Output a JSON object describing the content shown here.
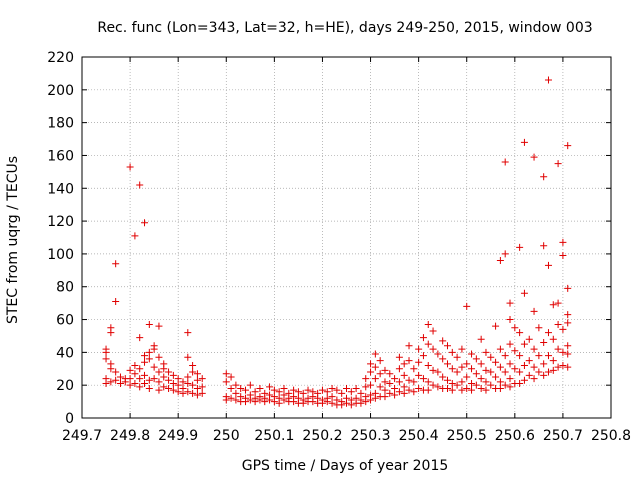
{
  "chart_data": {
    "type": "scatter",
    "title": "Rec. func (Lon=343, Lat=32, h=HE), days 249-250, 2015, window 003",
    "xlabel": "GPS time / Days of year 2015",
    "ylabel": "STEC from uqrg / TECUs",
    "xlim": [
      249.7,
      250.8
    ],
    "ylim": [
      0,
      220
    ],
    "xticks": [
      "249.7",
      "249.8",
      "249.9",
      "250",
      "250.1",
      "250.2",
      "250.3",
      "250.4",
      "250.5",
      "250.6",
      "250.7",
      "250.8"
    ],
    "yticks": [
      "0",
      "20",
      "40",
      "60",
      "80",
      "100",
      "120",
      "140",
      "160",
      "180",
      "200",
      "220"
    ],
    "grid": true,
    "marker": "+",
    "color": "#e00000",
    "points": [
      [
        249.75,
        42
      ],
      [
        249.75,
        40
      ],
      [
        249.75,
        36
      ],
      [
        249.75,
        24
      ],
      [
        249.75,
        21
      ],
      [
        249.76,
        55
      ],
      [
        249.76,
        52
      ],
      [
        249.76,
        33
      ],
      [
        249.76,
        30
      ],
      [
        249.76,
        22
      ],
      [
        249.77,
        94
      ],
      [
        249.77,
        71
      ],
      [
        249.77,
        28
      ],
      [
        249.77,
        23
      ],
      [
        249.78,
        25
      ],
      [
        249.78,
        21
      ],
      [
        249.79,
        22
      ],
      [
        249.79,
        24
      ],
      [
        249.8,
        153
      ],
      [
        249.8,
        29
      ],
      [
        249.8,
        20
      ],
      [
        249.8,
        24
      ],
      [
        249.81,
        111
      ],
      [
        249.81,
        32
      ],
      [
        249.81,
        27
      ],
      [
        249.81,
        21
      ],
      [
        249.82,
        142
      ],
      [
        249.82,
        49
      ],
      [
        249.82,
        30
      ],
      [
        249.82,
        24
      ],
      [
        249.82,
        19
      ],
      [
        249.83,
        119
      ],
      [
        249.83,
        38
      ],
      [
        249.83,
        34
      ],
      [
        249.83,
        26
      ],
      [
        249.83,
        21
      ],
      [
        249.84,
        57
      ],
      [
        249.84,
        40
      ],
      [
        249.84,
        36
      ],
      [
        249.84,
        23
      ],
      [
        249.84,
        18
      ],
      [
        249.85,
        44
      ],
      [
        249.85,
        42
      ],
      [
        249.85,
        31
      ],
      [
        249.85,
        24
      ],
      [
        249.86,
        56
      ],
      [
        249.86,
        37
      ],
      [
        249.86,
        28
      ],
      [
        249.86,
        22
      ],
      [
        249.86,
        17
      ],
      [
        249.87,
        33
      ],
      [
        249.87,
        30
      ],
      [
        249.87,
        25
      ],
      [
        249.87,
        19
      ],
      [
        249.88,
        28
      ],
      [
        249.88,
        23
      ],
      [
        249.88,
        18
      ],
      [
        249.89,
        26
      ],
      [
        249.89,
        21
      ],
      [
        249.89,
        17
      ],
      [
        249.9,
        24
      ],
      [
        249.9,
        20
      ],
      [
        249.9,
        16
      ],
      [
        249.91,
        22
      ],
      [
        249.91,
        18
      ],
      [
        249.91,
        15
      ],
      [
        249.92,
        52
      ],
      [
        249.92,
        37
      ],
      [
        249.92,
        25
      ],
      [
        249.92,
        21
      ],
      [
        249.92,
        16
      ],
      [
        249.93,
        32
      ],
      [
        249.93,
        28
      ],
      [
        249.93,
        20
      ],
      [
        249.93,
        15
      ],
      [
        249.94,
        27
      ],
      [
        249.94,
        23
      ],
      [
        249.94,
        18
      ],
      [
        249.94,
        14
      ],
      [
        249.95,
        24
      ],
      [
        249.95,
        19
      ],
      [
        249.95,
        15
      ],
      [
        250.0,
        27
      ],
      [
        250.0,
        22
      ],
      [
        250.0,
        13
      ],
      [
        250.0,
        11
      ],
      [
        250.01,
        25
      ],
      [
        250.01,
        18
      ],
      [
        250.01,
        12
      ],
      [
        250.02,
        20
      ],
      [
        250.02,
        15
      ],
      [
        250.02,
        11
      ],
      [
        250.03,
        18
      ],
      [
        250.03,
        13
      ],
      [
        250.03,
        10
      ],
      [
        250.04,
        17
      ],
      [
        250.04,
        12
      ],
      [
        250.04,
        10
      ],
      [
        250.05,
        20
      ],
      [
        250.05,
        14
      ],
      [
        250.05,
        11
      ],
      [
        250.06,
        16
      ],
      [
        250.06,
        12
      ],
      [
        250.06,
        10
      ],
      [
        250.07,
        18
      ],
      [
        250.07,
        13
      ],
      [
        250.07,
        11
      ],
      [
        250.08,
        15
      ],
      [
        250.08,
        12
      ],
      [
        250.08,
        10
      ],
      [
        250.09,
        19
      ],
      [
        250.09,
        14
      ],
      [
        250.09,
        11
      ],
      [
        250.1,
        17
      ],
      [
        250.1,
        13
      ],
      [
        250.1,
        10
      ],
      [
        250.11,
        16
      ],
      [
        250.11,
        12
      ],
      [
        250.11,
        9
      ],
      [
        250.12,
        18
      ],
      [
        250.12,
        14
      ],
      [
        250.12,
        11
      ],
      [
        250.13,
        15
      ],
      [
        250.13,
        12
      ],
      [
        250.13,
        10
      ],
      [
        250.14,
        17
      ],
      [
        250.14,
        13
      ],
      [
        250.14,
        10
      ],
      [
        250.15,
        16
      ],
      [
        250.15,
        12
      ],
      [
        250.15,
        9
      ],
      [
        250.16,
        15
      ],
      [
        250.16,
        11
      ],
      [
        250.16,
        9
      ],
      [
        250.17,
        17
      ],
      [
        250.17,
        12
      ],
      [
        250.17,
        10
      ],
      [
        250.18,
        16
      ],
      [
        250.18,
        13
      ],
      [
        250.18,
        10
      ],
      [
        250.19,
        15
      ],
      [
        250.19,
        12
      ],
      [
        250.19,
        9
      ],
      [
        250.2,
        17
      ],
      [
        250.2,
        11
      ],
      [
        250.2,
        9
      ],
      [
        250.21,
        16
      ],
      [
        250.21,
        12
      ],
      [
        250.21,
        10
      ],
      [
        250.22,
        18
      ],
      [
        250.22,
        13
      ],
      [
        250.22,
        9
      ],
      [
        250.23,
        17
      ],
      [
        250.23,
        11
      ],
      [
        250.23,
        8
      ],
      [
        250.24,
        15
      ],
      [
        250.24,
        10
      ],
      [
        250.24,
        8
      ],
      [
        250.25,
        18
      ],
      [
        250.25,
        12
      ],
      [
        250.25,
        9
      ],
      [
        250.26,
        16
      ],
      [
        250.26,
        11
      ],
      [
        250.26,
        8
      ],
      [
        250.27,
        18
      ],
      [
        250.27,
        12
      ],
      [
        250.27,
        9
      ],
      [
        250.28,
        15
      ],
      [
        250.28,
        11
      ],
      [
        250.28,
        9
      ],
      [
        250.29,
        24
      ],
      [
        250.29,
        19
      ],
      [
        250.29,
        13
      ],
      [
        250.29,
        10
      ],
      [
        250.3,
        33
      ],
      [
        250.3,
        28
      ],
      [
        250.3,
        20
      ],
      [
        250.3,
        14
      ],
      [
        250.3,
        11
      ],
      [
        250.31,
        39
      ],
      [
        250.31,
        31
      ],
      [
        250.31,
        24
      ],
      [
        250.31,
        15
      ],
      [
        250.31,
        12
      ],
      [
        250.32,
        35
      ],
      [
        250.32,
        27
      ],
      [
        250.32,
        19
      ],
      [
        250.32,
        13
      ],
      [
        250.33,
        29
      ],
      [
        250.33,
        22
      ],
      [
        250.33,
        17
      ],
      [
        250.33,
        13
      ],
      [
        250.34,
        27
      ],
      [
        250.34,
        21
      ],
      [
        250.34,
        15
      ],
      [
        250.35,
        24
      ],
      [
        250.35,
        18
      ],
      [
        250.35,
        14
      ],
      [
        250.36,
        37
      ],
      [
        250.36,
        30
      ],
      [
        250.36,
        22
      ],
      [
        250.36,
        16
      ],
      [
        250.37,
        33
      ],
      [
        250.37,
        26
      ],
      [
        250.37,
        19
      ],
      [
        250.37,
        15
      ],
      [
        250.38,
        44
      ],
      [
        250.38,
        35
      ],
      [
        250.38,
        23
      ],
      [
        250.38,
        17
      ],
      [
        250.39,
        30
      ],
      [
        250.39,
        22
      ],
      [
        250.39,
        16
      ],
      [
        250.4,
        42
      ],
      [
        250.4,
        34
      ],
      [
        250.4,
        26
      ],
      [
        250.4,
        18
      ],
      [
        250.41,
        49
      ],
      [
        250.41,
        38
      ],
      [
        250.41,
        24
      ],
      [
        250.41,
        17
      ],
      [
        250.42,
        57
      ],
      [
        250.42,
        45
      ],
      [
        250.42,
        32
      ],
      [
        250.42,
        22
      ],
      [
        250.42,
        17
      ],
      [
        250.43,
        53
      ],
      [
        250.43,
        42
      ],
      [
        250.43,
        29
      ],
      [
        250.43,
        20
      ],
      [
        250.44,
        39
      ],
      [
        250.44,
        28
      ],
      [
        250.44,
        19
      ],
      [
        250.45,
        47
      ],
      [
        250.45,
        36
      ],
      [
        250.45,
        25
      ],
      [
        250.45,
        18
      ],
      [
        250.46,
        44
      ],
      [
        250.46,
        33
      ],
      [
        250.46,
        23
      ],
      [
        250.46,
        18
      ],
      [
        250.47,
        40
      ],
      [
        250.47,
        30
      ],
      [
        250.47,
        21
      ],
      [
        250.47,
        17
      ],
      [
        250.48,
        37
      ],
      [
        250.48,
        28
      ],
      [
        250.48,
        20
      ],
      [
        250.49,
        42
      ],
      [
        250.49,
        31
      ],
      [
        250.49,
        22
      ],
      [
        250.49,
        17
      ],
      [
        250.5,
        68
      ],
      [
        250.5,
        33
      ],
      [
        250.5,
        25
      ],
      [
        250.5,
        18
      ],
      [
        250.51,
        39
      ],
      [
        250.51,
        30
      ],
      [
        250.51,
        21
      ],
      [
        250.51,
        17
      ],
      [
        250.52,
        36
      ],
      [
        250.52,
        27
      ],
      [
        250.52,
        20
      ],
      [
        250.53,
        48
      ],
      [
        250.53,
        33
      ],
      [
        250.53,
        24
      ],
      [
        250.53,
        18
      ],
      [
        250.54,
        40
      ],
      [
        250.54,
        29
      ],
      [
        250.54,
        22
      ],
      [
        250.54,
        17
      ],
      [
        250.55,
        37
      ],
      [
        250.55,
        28
      ],
      [
        250.55,
        20
      ],
      [
        250.56,
        56
      ],
      [
        250.56,
        34
      ],
      [
        250.56,
        25
      ],
      [
        250.56,
        18
      ],
      [
        250.57,
        96
      ],
      [
        250.57,
        42
      ],
      [
        250.57,
        31
      ],
      [
        250.57,
        22
      ],
      [
        250.57,
        18
      ],
      [
        250.58,
        156
      ],
      [
        250.58,
        100
      ],
      [
        250.58,
        38
      ],
      [
        250.58,
        28
      ],
      [
        250.58,
        20
      ],
      [
        250.59,
        70
      ],
      [
        250.59,
        60
      ],
      [
        250.59,
        45
      ],
      [
        250.59,
        33
      ],
      [
        250.59,
        24
      ],
      [
        250.59,
        19
      ],
      [
        250.6,
        55
      ],
      [
        250.6,
        41
      ],
      [
        250.6,
        30
      ],
      [
        250.6,
        21
      ],
      [
        250.61,
        104
      ],
      [
        250.61,
        52
      ],
      [
        250.61,
        38
      ],
      [
        250.61,
        28
      ],
      [
        250.61,
        21
      ],
      [
        250.62,
        168
      ],
      [
        250.62,
        76
      ],
      [
        250.62,
        45
      ],
      [
        250.62,
        32
      ],
      [
        250.62,
        23
      ],
      [
        250.63,
        48
      ],
      [
        250.63,
        35
      ],
      [
        250.63,
        26
      ],
      [
        250.64,
        159
      ],
      [
        250.64,
        65
      ],
      [
        250.64,
        42
      ],
      [
        250.64,
        31
      ],
      [
        250.64,
        24
      ],
      [
        250.65,
        55
      ],
      [
        250.65,
        38
      ],
      [
        250.65,
        28
      ],
      [
        250.66,
        147
      ],
      [
        250.66,
        105
      ],
      [
        250.66,
        46
      ],
      [
        250.66,
        33
      ],
      [
        250.66,
        26
      ],
      [
        250.67,
        206
      ],
      [
        250.67,
        93
      ],
      [
        250.67,
        52
      ],
      [
        250.67,
        38
      ],
      [
        250.67,
        28
      ],
      [
        250.68,
        69
      ],
      [
        250.68,
        48
      ],
      [
        250.68,
        35
      ],
      [
        250.68,
        29
      ],
      [
        250.69,
        155
      ],
      [
        250.69,
        70
      ],
      [
        250.69,
        57
      ],
      [
        250.69,
        42
      ],
      [
        250.69,
        31
      ],
      [
        250.7,
        107
      ],
      [
        250.7,
        99
      ],
      [
        250.7,
        54
      ],
      [
        250.7,
        40
      ],
      [
        250.7,
        32
      ],
      [
        250.71,
        166
      ],
      [
        250.71,
        79
      ],
      [
        250.71,
        63
      ],
      [
        250.71,
        58
      ],
      [
        250.71,
        44
      ],
      [
        250.71,
        39
      ],
      [
        250.71,
        31
      ]
    ]
  }
}
